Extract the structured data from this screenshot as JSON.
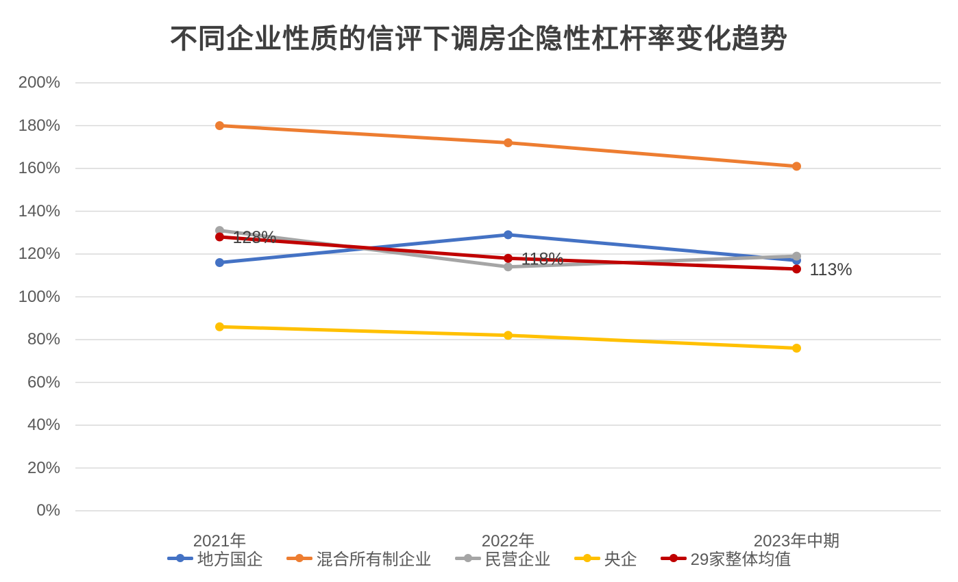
{
  "title": "不同企业性质的信评下调房企隐性杠杆率变化趋势",
  "chart_data": {
    "type": "line",
    "categories": [
      "2021年",
      "2022年",
      "2023年中期"
    ],
    "series": [
      {
        "name": "地方国企",
        "color": "#4472C4",
        "values": [
          116,
          129,
          117
        ]
      },
      {
        "name": "混合所有制企业",
        "color": "#ED7D31",
        "values": [
          180,
          172,
          161
        ]
      },
      {
        "name": "民营企业",
        "color": "#A5A5A5",
        "values": [
          131,
          114,
          119
        ]
      },
      {
        "name": "央企",
        "color": "#FFC000",
        "values": [
          86,
          82,
          76
        ]
      },
      {
        "name": "29家整体均值",
        "color": "#C00000",
        "values": [
          128,
          118,
          113
        ],
        "data_labels": [
          "128%",
          "118%",
          "113%"
        ]
      }
    ],
    "ylim": [
      0,
      200
    ],
    "y_tick_step": 20,
    "y_tick_labels": [
      "0%",
      "20%",
      "40%",
      "60%",
      "80%",
      "100%",
      "120%",
      "140%",
      "160%",
      "180%",
      "200%"
    ],
    "grid": true,
    "legend_position": "bottom"
  },
  "colors": {
    "title": "#3f3f3f",
    "axis_label": "#595959",
    "gridline": "#D9D9D9",
    "data_label": "#404040",
    "background": "#FFFFFF"
  }
}
